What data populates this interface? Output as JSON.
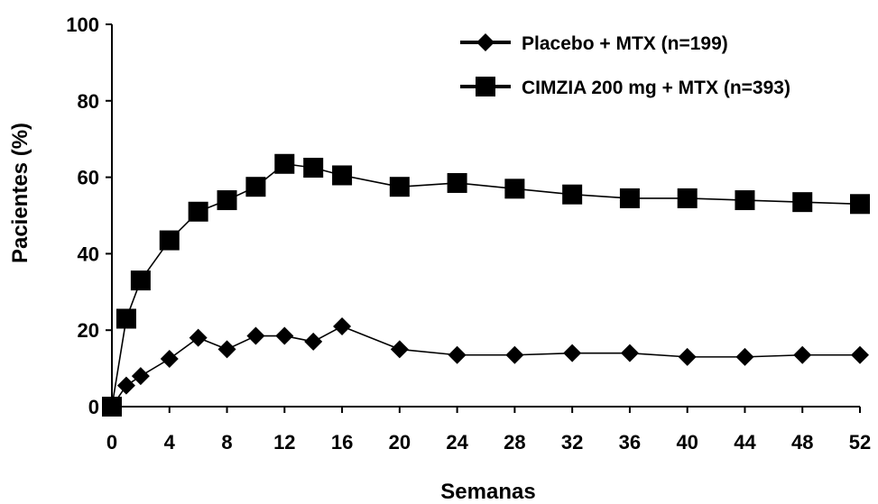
{
  "chart_data": {
    "type": "line",
    "title": "",
    "xlabel": "Semanas",
    "ylabel": "Pacientes (%)",
    "xlim": [
      0,
      52
    ],
    "ylim": [
      0,
      100
    ],
    "xticks": [
      0,
      4,
      8,
      12,
      16,
      20,
      24,
      28,
      32,
      36,
      40,
      44,
      48,
      52
    ],
    "yticks": [
      0,
      20,
      40,
      60,
      80,
      100
    ],
    "grid": false,
    "legend_position": "top-right",
    "series": [
      {
        "name": "Placebo + MTX (n=199)",
        "marker": "diamond",
        "color": "#000000",
        "x": [
          0,
          1,
          2,
          4,
          6,
          8,
          10,
          12,
          14,
          16,
          20,
          24,
          28,
          32,
          36,
          40,
          44,
          48,
          52
        ],
        "y": [
          0,
          5.5,
          8,
          12.5,
          18,
          15,
          18.5,
          18.5,
          17,
          21,
          15,
          13.5,
          13.5,
          14,
          14,
          13,
          13,
          13.5,
          13.5
        ]
      },
      {
        "name": "CIMZIA 200 mg + MTX (n=393)",
        "marker": "square",
        "color": "#000000",
        "x": [
          0,
          1,
          2,
          4,
          6,
          8,
          10,
          12,
          14,
          16,
          20,
          24,
          28,
          32,
          36,
          40,
          44,
          48,
          52
        ],
        "y": [
          0,
          23,
          33,
          43.5,
          51,
          54,
          57.5,
          63.5,
          62.5,
          60.5,
          57.5,
          58.5,
          57,
          55.5,
          54.5,
          54.5,
          54,
          53.5,
          53
        ]
      }
    ]
  }
}
